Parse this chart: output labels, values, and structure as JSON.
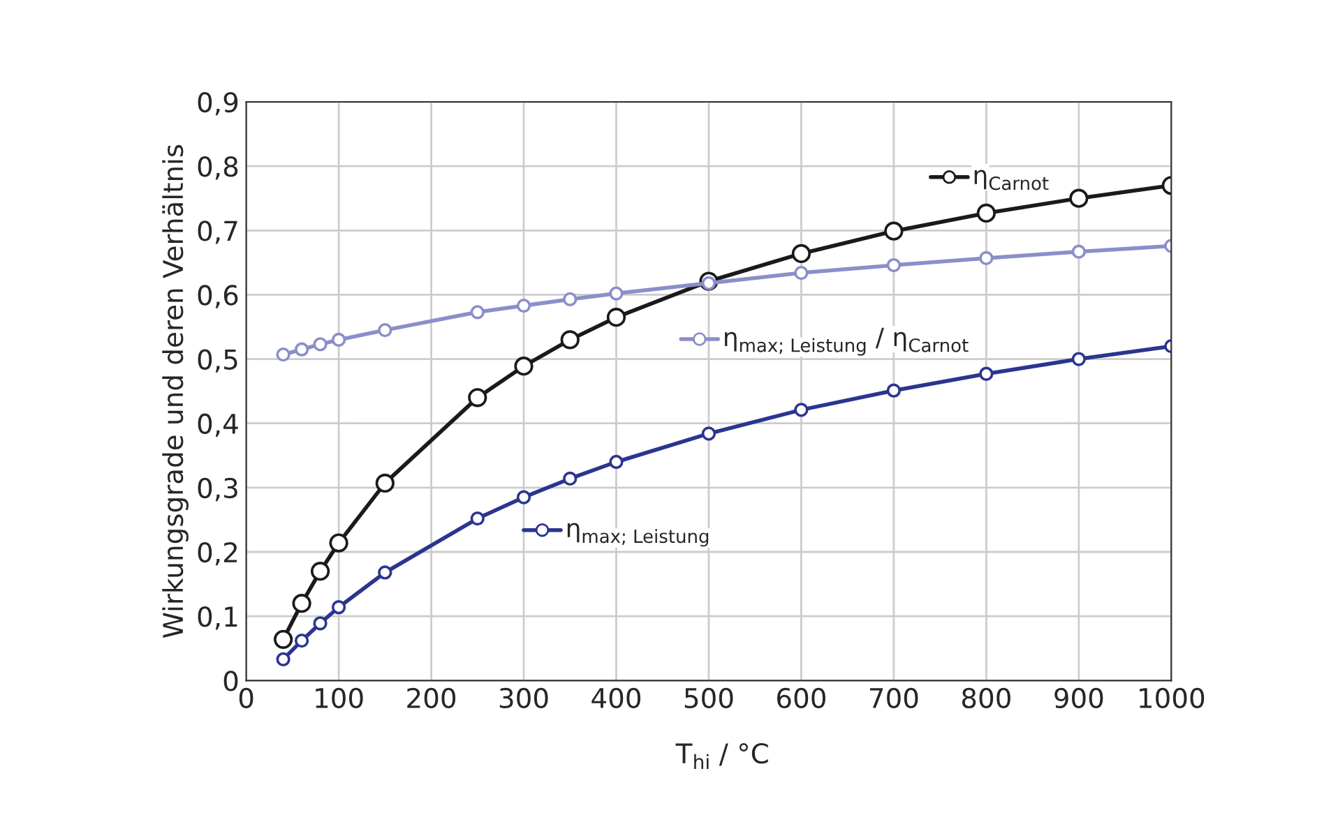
{
  "chart_data": {
    "type": "line",
    "xlabel": "T$_{hi}$ / °C",
    "ylabel": "Wirkungsgrade und deren Verhältnis",
    "x": [
      40,
      60,
      80,
      100,
      150,
      250,
      300,
      350,
      400,
      500,
      600,
      700,
      800,
      900,
      1000
    ],
    "series": [
      {
        "name": "η$_{Carnot}$",
        "color": "#1a1a1a",
        "values": [
          0.064,
          0.12,
          0.17,
          0.214,
          0.307,
          0.44,
          0.489,
          0.53,
          0.565,
          0.621,
          0.664,
          0.699,
          0.727,
          0.75,
          0.77
        ]
      },
      {
        "name": "η$_{max; Leistung}$ / η$_{Carnot}$",
        "color": "#8a8fc8",
        "values": [
          0.507,
          0.515,
          0.523,
          0.53,
          0.545,
          0.573,
          0.583,
          0.593,
          0.602,
          0.618,
          0.634,
          0.646,
          0.657,
          0.667,
          0.676
        ]
      },
      {
        "name": "η$_{max; Leistung}$",
        "color": "#2b3590",
        "values": [
          0.033,
          0.062,
          0.089,
          0.114,
          0.168,
          0.252,
          0.285,
          0.314,
          0.34,
          0.384,
          0.421,
          0.451,
          0.477,
          0.5,
          0.52
        ]
      }
    ],
    "xlim": [
      0,
      1000
    ],
    "xticks": [
      0,
      100,
      200,
      300,
      400,
      500,
      600,
      700,
      800,
      900,
      1000
    ],
    "ylim": [
      0,
      0.9
    ],
    "yticks": [
      {
        "value": 0,
        "label": "0"
      },
      {
        "value": 0.1,
        "label": "0,1"
      },
      {
        "value": 0.2,
        "label": "0,2"
      },
      {
        "value": 0.3,
        "label": "0,3"
      },
      {
        "value": 0.4,
        "label": "0,4"
      },
      {
        "value": 0.5,
        "label": "0,5"
      },
      {
        "value": 0.6,
        "label": "0,6"
      },
      {
        "value": 0.7,
        "label": "0,7"
      },
      {
        "value": 0.8,
        "label": "0,8"
      },
      {
        "value": 0.9,
        "label": "0,9"
      }
    ],
    "grid": true,
    "legend": "right",
    "marker": "circle",
    "line_style": "solid"
  }
}
